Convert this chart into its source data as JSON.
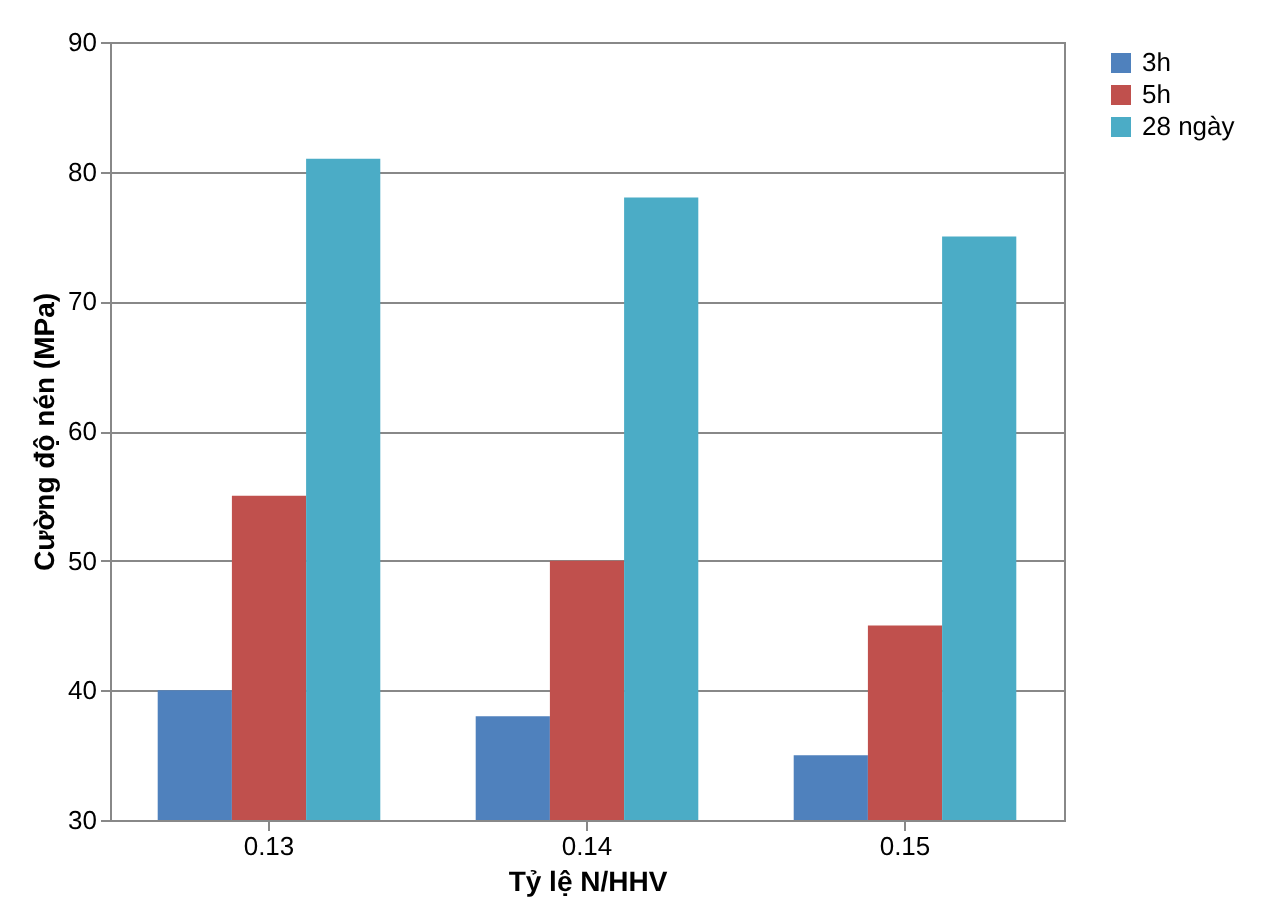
{
  "chart_data": {
    "type": "bar",
    "xlabel": "Tỷ lệ N/HHV",
    "ylabel": "Cường độ nén (MPa)",
    "categories": [
      "0.13",
      "0.14",
      "0.15"
    ],
    "series": [
      {
        "name": "3h",
        "color": "#4f81bd",
        "values": [
          40,
          38,
          35
        ]
      },
      {
        "name": "5h",
        "color": "#c0504d",
        "values": [
          55,
          50,
          45
        ]
      },
      {
        "name": "28 ngày",
        "color": "#4bacc6",
        "values": [
          81,
          78,
          75
        ]
      }
    ],
    "ylim": [
      30,
      90
    ],
    "yticks": [
      30,
      40,
      50,
      60,
      70,
      80,
      90
    ],
    "grid": "y",
    "legend": "top right"
  }
}
